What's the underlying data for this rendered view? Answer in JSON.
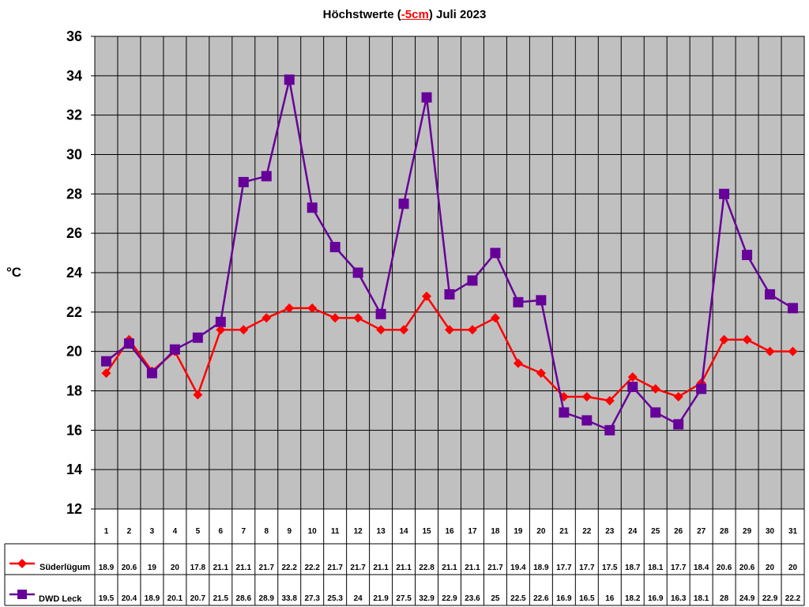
{
  "chart_data": {
    "type": "line",
    "title": {
      "before": "Höchstwerte (",
      "highlight": "-5cm",
      "after": ") Juli 2023"
    },
    "ylabel": "°C",
    "xlabel": "",
    "ylim": [
      12,
      36
    ],
    "ytick_step": 2,
    "grid": true,
    "plot_background": "#c0c0c0",
    "categories": [
      "1",
      "2",
      "3",
      "4",
      "5",
      "6",
      "7",
      "8",
      "9",
      "10",
      "11",
      "12",
      "13",
      "14",
      "15",
      "16",
      "17",
      "18",
      "19",
      "20",
      "21",
      "22",
      "23",
      "24",
      "25",
      "26",
      "27",
      "28",
      "29",
      "30",
      "31"
    ],
    "series": [
      {
        "name": "Süderlügum",
        "color": "#ff0000",
        "marker": "diamond",
        "values": [
          18.9,
          20.6,
          19,
          20,
          17.8,
          21.1,
          21.1,
          21.7,
          22.2,
          22.2,
          21.7,
          21.7,
          21.1,
          21.1,
          22.8,
          21.1,
          21.1,
          21.7,
          19.4,
          18.9,
          17.7,
          17.7,
          17.5,
          18.7,
          18.1,
          17.7,
          18.4,
          20.6,
          20.6,
          20,
          20
        ],
        "labels": [
          "18.9",
          "20.6",
          "19",
          "20",
          "17.8",
          "21.1",
          "21.1",
          "21.7",
          "22.2",
          "22.2",
          "21.7",
          "21.7",
          "21.1",
          "21.1",
          "22.8",
          "21.1",
          "21.1",
          "21.7",
          "19.4",
          "18.9",
          "17.7",
          "17.7",
          "17.5",
          "18.7",
          "18.1",
          "17.7",
          "18.4",
          "20.6",
          "20.6",
          "20",
          "20"
        ]
      },
      {
        "name": "DWD Leck",
        "color": "#660099",
        "marker": "square",
        "values": [
          19.5,
          20.4,
          18.9,
          20.1,
          20.7,
          21.5,
          28.6,
          28.9,
          33.8,
          27.3,
          25.3,
          24,
          21.9,
          27.5,
          32.9,
          22.9,
          23.6,
          25,
          22.5,
          22.6,
          16.9,
          16.5,
          16,
          18.2,
          16.9,
          16.3,
          18.1,
          28,
          24.9,
          22.9,
          22.2
        ],
        "labels": [
          "19.5",
          "20.4",
          "18.9",
          "20.1",
          "20.7",
          "21.5",
          "28.6",
          "28.9",
          "33.8",
          "27.3",
          "25.3",
          "24",
          "21.9",
          "27.5",
          "32.9",
          "22.9",
          "23.6",
          "25",
          "22.5",
          "22.6",
          "16.9",
          "16.5",
          "16",
          "18.2",
          "16.9",
          "16.3",
          "18.1",
          "28",
          "24.9",
          "22.9",
          "22.2"
        ]
      }
    ]
  }
}
